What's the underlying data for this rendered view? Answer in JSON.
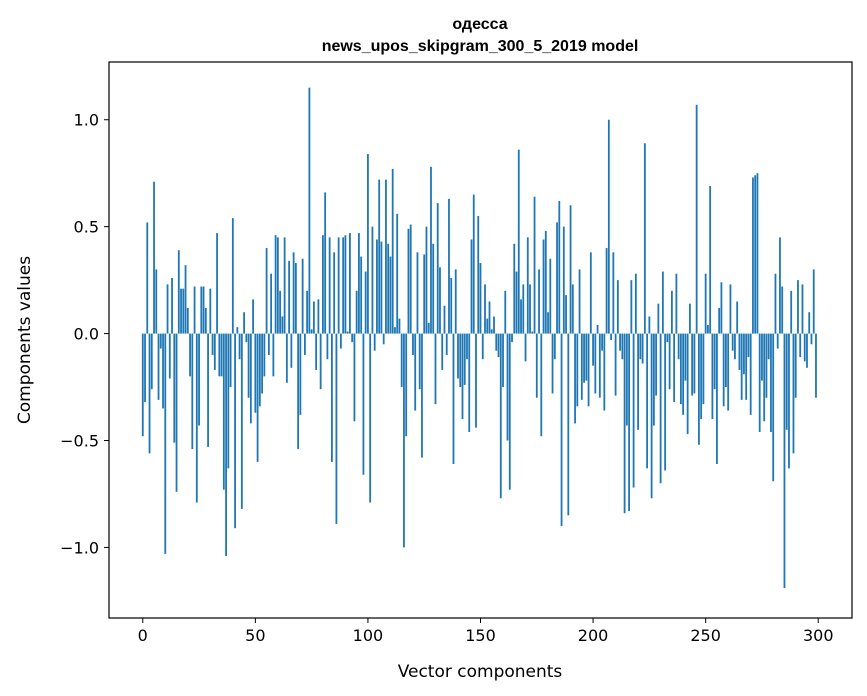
{
  "chart_data": {
    "type": "bar",
    "title": "одесса",
    "subtitle": "news_upos_skipgram_300_5_2019 model",
    "xlabel": "Vector components",
    "ylabel": "Components values",
    "xlim": [
      -15,
      315
    ],
    "ylim": [
      -1.33,
      1.27
    ],
    "xticks": [
      0,
      50,
      100,
      150,
      200,
      250,
      300
    ],
    "xtick_labels": [
      "0",
      "50",
      "100",
      "150",
      "200",
      "250",
      "300"
    ],
    "yticks": [
      -1.0,
      -0.5,
      0.0,
      0.5,
      1.0
    ],
    "ytick_labels": [
      "−1.0",
      "−0.5",
      "0.0",
      "0.5",
      "1.0"
    ],
    "grid": false,
    "bar_color": "#1f77b4",
    "values": [
      -0.48,
      -0.32,
      0.52,
      -0.56,
      -0.26,
      0.71,
      0.3,
      -0.31,
      -0.07,
      -0.35,
      -1.03,
      0.23,
      -0.21,
      0.26,
      -0.51,
      -0.74,
      0.39,
      0.21,
      0.21,
      0.32,
      0.12,
      -0.2,
      -0.54,
      0.22,
      -0.79,
      -0.43,
      0.22,
      0.22,
      0.12,
      -0.53,
      0.21,
      -0.1,
      -0.17,
      0.47,
      -0.2,
      -0.2,
      -0.73,
      -1.04,
      -0.63,
      -0.25,
      0.54,
      -0.91,
      0.03,
      -0.12,
      -0.82,
      0.1,
      -0.04,
      -0.3,
      -0.42,
      0.16,
      -0.37,
      -0.6,
      -0.34,
      -0.28,
      -0.2,
      0.4,
      -0.1,
      0.28,
      -0.2,
      0.46,
      0.45,
      0.2,
      0.08,
      0.45,
      -0.23,
      0.34,
      -0.16,
      0.38,
      0.33,
      -0.54,
      -0.38,
      0.35,
      -0.1,
      0.2,
      1.15,
      0.02,
      0.15,
      -0.17,
      0.16,
      -0.26,
      0.46,
      0.66,
      -0.12,
      0.45,
      -0.6,
      0.38,
      -0.89,
      0.45,
      -0.07,
      0.45,
      0.46,
      0.01,
      0.47,
      -0.04,
      -0.41,
      0.2,
      0.47,
      0.36,
      -0.66,
      0.29,
      0.84,
      -0.79,
      0.5,
      -0.08,
      0.44,
      0.72,
      0.43,
      -0.05,
      0.72,
      0.42,
      0.36,
      0.77,
      0.03,
      0.56,
      0.07,
      -0.25,
      -1.0,
      -0.48,
      0.49,
      0.51,
      -0.1,
      -0.36,
      0.38,
      -0.26,
      -0.58,
      0.37,
      0.5,
      0.05,
      0.78,
      0.42,
      -0.33,
      0.61,
      0.31,
      -0.17,
      0.13,
      -0.1,
      0.63,
      0.26,
      -0.61,
      0.3,
      -0.21,
      -0.25,
      -0.4,
      -0.24,
      -0.12,
      -0.46,
      0.44,
      0.65,
      -0.44,
      0.55,
      0.33,
      -0.12,
      0.23,
      0.07,
      0.15,
      0.02,
      0.08,
      -0.08,
      -0.11,
      -0.77,
      -0.25,
      0.2,
      -0.5,
      -0.73,
      -0.04,
      0.42,
      0.29,
      0.86,
      0.16,
      0.23,
      -0.13,
      0.45,
      0.23,
      0.01,
      0.64,
      -0.3,
      0.3,
      -0.48,
      0.44,
      0.48,
      0.1,
      0.35,
      -0.28,
      -0.12,
      0.52,
      0.62,
      -0.9,
      0.5,
      0.18,
      -0.85,
      0.6,
      0.23,
      -0.42,
      -0.34,
      0.3,
      -0.31,
      -0.23,
      -0.22,
      -0.34,
      0.38,
      -0.15,
      -0.28,
      0.04,
      -0.3,
      -0.08,
      -0.36,
      0.4,
      1.0,
      -0.03,
      0.38,
      -0.29,
      0.25,
      -0.08,
      -0.12,
      -0.84,
      -0.43,
      -0.83,
      0.25,
      -0.72,
      0.28,
      -0.45,
      -0.12,
      -0.14,
      0.89,
      -0.63,
      0.08,
      -0.77,
      -0.43,
      -0.29,
      0.14,
      -0.7,
      0.29,
      -0.64,
      -0.04,
      -0.26,
      0.2,
      -0.32,
      0.28,
      -0.12,
      -0.33,
      -0.38,
      -0.22,
      -0.47,
      0.14,
      -0.29,
      -0.28,
      1.07,
      -0.52,
      -0.4,
      -0.33,
      0.28,
      0.04,
      0.69,
      -0.4,
      -0.26,
      -0.61,
      0.12,
      0.24,
      -0.34,
      -0.25,
      -0.36,
      0.23,
      -0.08,
      -0.12,
      0.15,
      -0.17,
      -0.31,
      -0.19,
      -0.31,
      -0.11,
      -0.38,
      0.73,
      0.74,
      0.75,
      -0.46,
      -0.22,
      -0.41,
      -0.3,
      -0.12,
      -0.46,
      -0.69,
      0.28,
      -0.07,
      0.45,
      0.22,
      -1.19,
      -0.45,
      -0.63,
      0.2,
      -0.56,
      -0.3,
      0.25,
      -0.11,
      0.23,
      -0.13,
      -0.16,
      0.1,
      -0.05,
      0.3,
      -0.3
    ]
  }
}
